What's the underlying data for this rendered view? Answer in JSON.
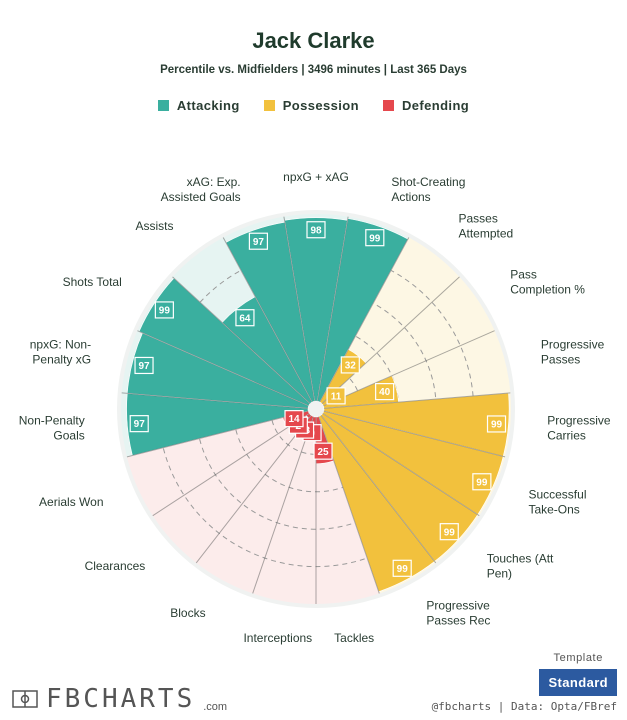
{
  "header": {
    "title": "Jack Clarke",
    "subtitle": "Percentile vs. Midfielders | 3496 minutes | Last 365 Days"
  },
  "legend": [
    {
      "label": "Attacking",
      "color": "#3aaf9f"
    },
    {
      "label": "Possession",
      "color": "#f2c13d"
    },
    {
      "label": "Defending",
      "color": "#e5484d"
    }
  ],
  "chart_data": {
    "type": "radial_bar",
    "title": "Jack Clarke",
    "subtitle": "Percentile vs. Midfielders | 3496 minutes | Last 365 Days",
    "range": [
      0,
      100
    ],
    "gridlines": [
      20,
      40,
      60,
      80
    ],
    "categories": [
      {
        "name": "Attacking",
        "color": "#3aaf9f",
        "bg": "#e6f4f2"
      },
      {
        "name": "Possession",
        "color": "#f2c13d",
        "bg": "#fdf7e4"
      },
      {
        "name": "Defending",
        "color": "#e5484d",
        "bg": "#fceceb"
      }
    ],
    "params": [
      {
        "label": "npxG + xAG",
        "value": 98,
        "group": "Attacking"
      },
      {
        "label": "Shot-Creating Actions",
        "value": 99,
        "group": "Attacking"
      },
      {
        "label": "Passes Attempted",
        "value": 32,
        "group": "Possession"
      },
      {
        "label": "Pass Completion %",
        "value": 11,
        "group": "Possession"
      },
      {
        "label": "Progressive Passes",
        "value": 40,
        "group": "Possession"
      },
      {
        "label": "Progressive Carries",
        "value": 99,
        "group": "Possession"
      },
      {
        "label": "Successful Take-Ons",
        "value": 99,
        "group": "Possession"
      },
      {
        "label": "Touches (Att Pen)",
        "value": 99,
        "group": "Possession"
      },
      {
        "label": "Progressive Passes Rec",
        "value": 99,
        "group": "Possession"
      },
      {
        "label": "Tackles",
        "value": 25,
        "group": "Defending"
      },
      {
        "label": "Interceptions",
        "value": 9,
        "group": "Defending"
      },
      {
        "label": "Blocks",
        "value": 13,
        "group": "Defending"
      },
      {
        "label": "Clearances",
        "value": 2,
        "group": "Defending"
      },
      {
        "label": "Aerials Won",
        "value": 14,
        "group": "Defending"
      },
      {
        "label": "Non-Penalty Goals",
        "value": 97,
        "group": "Attacking"
      },
      {
        "label": "npxG: Non-Penalty xG",
        "value": 97,
        "group": "Attacking"
      },
      {
        "label": "Shots Total",
        "value": 99,
        "group": "Attacking"
      },
      {
        "label": "Assists",
        "value": 64,
        "group": "Attacking"
      },
      {
        "label": "xAG: Exp. Assisted Goals",
        "value": 97,
        "group": "Attacking"
      }
    ]
  },
  "labels_display": [
    [
      "npxG + xAG"
    ],
    [
      "Shot-Creating",
      "Actions"
    ],
    [
      "Passes",
      "Attempted"
    ],
    [
      "Pass",
      "Completion %"
    ],
    [
      "Progressive",
      "Passes"
    ],
    [
      "Progressive",
      "Carries"
    ],
    [
      "Successful",
      "Take-Ons"
    ],
    [
      "Touches (Att",
      "Pen)"
    ],
    [
      "Progressive",
      "Passes Rec"
    ],
    [
      "Tackles"
    ],
    [
      "Interceptions"
    ],
    [
      "Blocks"
    ],
    [
      "Clearances"
    ],
    [
      "Aerials Won"
    ],
    [
      "Non-Penalty",
      "Goals"
    ],
    [
      "npxG: Non-",
      "Penalty xG"
    ],
    [
      "Shots Total"
    ],
    [
      "Assists"
    ],
    [
      "xAG: Exp.",
      "Assisted Goals"
    ]
  ],
  "footer": {
    "brand": "FBCHARTS",
    "brand_domain": ".com",
    "template_caption": "Template",
    "template_value": "Standard",
    "credits": "@fbcharts | Data: Opta/FBref"
  }
}
